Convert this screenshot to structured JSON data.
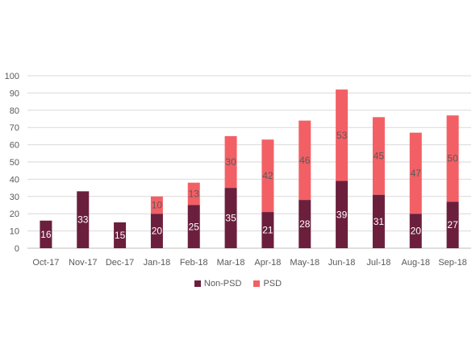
{
  "chart_data": {
    "type": "bar",
    "stacked": true,
    "title": "",
    "xlabel": "",
    "ylabel": "",
    "ylim": [
      0,
      100
    ],
    "yticks": [
      0,
      10,
      20,
      30,
      40,
      50,
      60,
      70,
      80,
      90,
      100
    ],
    "grid": true,
    "legend_position": "bottom",
    "categories": [
      "Oct-17",
      "Nov-17",
      "Dec-17",
      "Jan-18",
      "Feb-18",
      "Mar-18",
      "Apr-18",
      "May-18",
      "Jun-18",
      "Jul-18",
      "Aug-18",
      "Sep-18"
    ],
    "series": [
      {
        "name": "Non-PSD",
        "color": "#6b1f3d",
        "label_color": "#ffffff",
        "values": [
          16,
          33,
          15,
          20,
          25,
          35,
          21,
          28,
          39,
          31,
          20,
          27
        ]
      },
      {
        "name": "PSD",
        "color": "#f26065",
        "label_color": "#595959",
        "values": [
          0,
          0,
          0,
          10,
          13,
          30,
          42,
          46,
          53,
          45,
          47,
          50
        ]
      }
    ]
  }
}
